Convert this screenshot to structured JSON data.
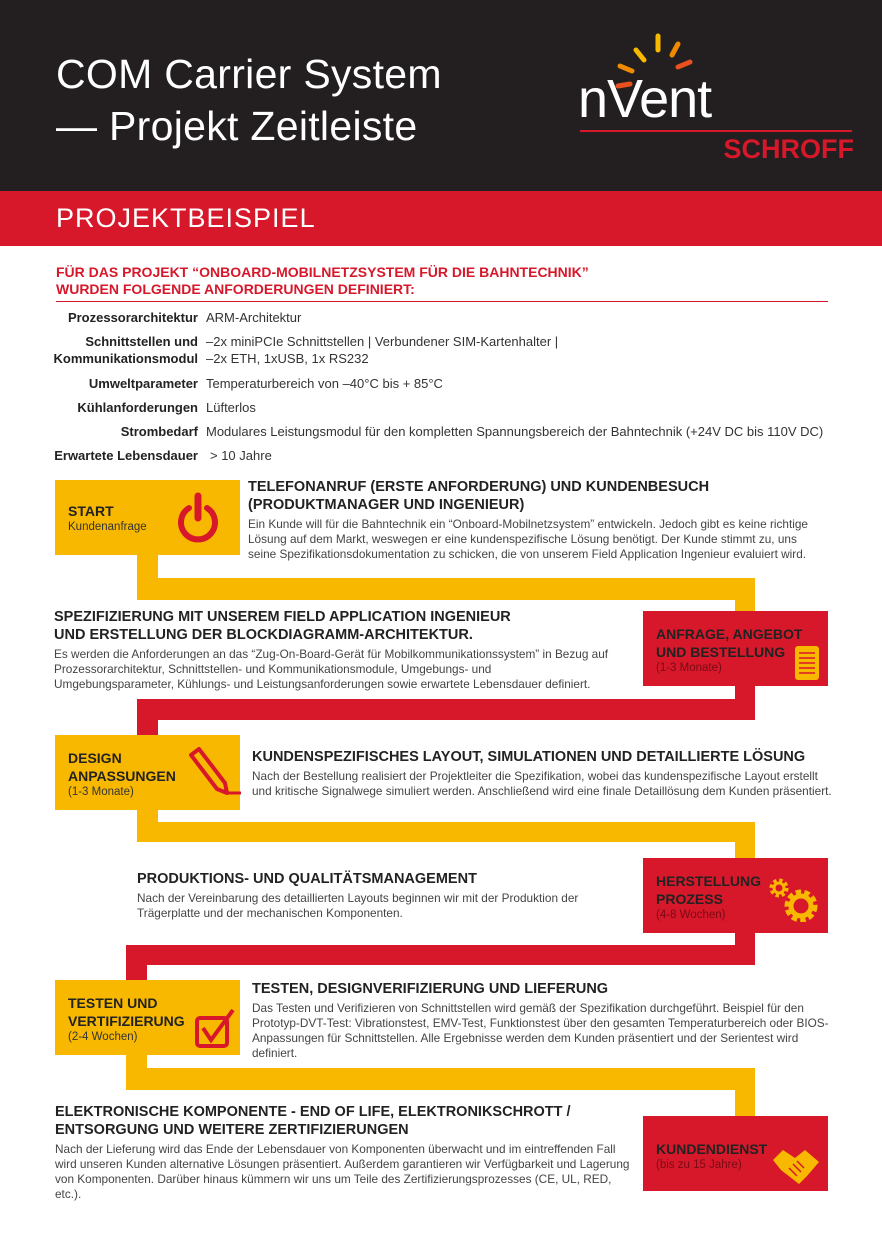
{
  "header": {
    "title_line1": "COM Carrier System",
    "title_line2": "— Projekt Zeitleiste",
    "logo_text": "nVent",
    "logo_sub": "SCHROFF"
  },
  "band": {
    "label": "PROJEKTBEISPIEL"
  },
  "intro": {
    "line1": "FÜR DAS PROJEKT “ONBOARD-MOBILNETZSYSTEM FÜR DIE BAHNTECHNIK”",
    "line2": "WURDEN FOLGENDE ANFORDERUNGEN DEFINIERT:"
  },
  "specs": [
    {
      "key": "Prozessorarchitektur",
      "value": "ARM-Architektur"
    },
    {
      "key": "Schnittstellen und",
      "key2": "Kommunikationsmodul",
      "value": "–2x miniPCIe Schnittstellen | Verbundener SIM-Kartenhalter |",
      "value2": "–2x ETH, 1xUSB, 1x RS232"
    },
    {
      "key": "Umweltparameter",
      "value": "Temperaturbereich von –40°C bis + 85°C"
    },
    {
      "key": "Kühlanforderungen",
      "value": "Lüfterlos"
    },
    {
      "key": "Strombedarf",
      "value": "Modulares Leistungsmodul für den kompletten Spannungsbereich der Bahntechnik (+24V DC bis 110V DC)"
    },
    {
      "key": "Erwartete Lebensdauer",
      "value": "> 10 Jahre"
    }
  ],
  "steps": [
    {
      "box_title": "START",
      "box_sub": "Kundenanfrage",
      "icon": "power-icon",
      "heading": "TELEFONANRUF (ERSTE ANFORDERUNG) UND KUNDENBESUCH (PRODUKTMANAGER UND INGENIEUR)",
      "text": "Ein Kunde will für die Bahntechnik ein “Onboard-Mobilnetzsystem” entwickeln. Jedoch gibt es keine richtige Lösung auf dem Markt, weswegen er eine kundenspezifische Lösung benötigt. Der Kunde stimmt zu, uns seine Spezifikationsdokumentation zu schicken, die von unserem Field Application Ingenieur evaluiert wird."
    },
    {
      "box_title": "ANFRAGE, ANGEBOT UND BESTELLUNG",
      "box_sub": "(1-3 Monate)",
      "icon": "document-icon",
      "heading": "SPEZIFIZIERUNG MIT UNSEREM FIELD APPLICATION INGENIEUR UND ERSTELLUNG DER BLOCKDIAGRAMM-ARCHITEKTUR.",
      "text": "Es werden die Anforderungen an das “Zug-On-Board-Gerät für Mobilkommunikationssystem” in Bezug auf Prozessorarchitektur, Schnittstellen- und Kommunikationsmodule, Umgebungs- und Umgebungsparameter, Kühlungs- und Leistungsanforderungen sowie erwartete Lebensdauer definiert."
    },
    {
      "box_title": "DESIGN ANPASSUNGEN",
      "box_sub": "(1-3 Monate)",
      "icon": "pencil-icon",
      "heading": "KUNDENSPEZIFISCHES LAYOUT, SIMULATIONEN UND DETAILLIERTE LÖSUNG",
      "text": "Nach der Bestellung realisiert der Projektleiter die Spezifikation, wobei das kundenspezifische Layout erstellt und kritische Signalwege simuliert werden. Anschließend wird eine finale Detaillösung dem Kunden präsentiert."
    },
    {
      "box_title": "HERSTELLUNG PROZESS",
      "box_sub": "(4-8 Wochen)",
      "icon": "gears-icon",
      "heading": "PRODUKTIONS- UND QUALITÄTSMANAGEMENT",
      "text": "Nach der Vereinbarung des detaillierten Layouts beginnen wir mit der Produktion der Trägerplatte und der mechanischen Komponenten."
    },
    {
      "box_title": "TESTEN UND VERTIFIZIERUNG",
      "box_sub": "(2-4 Wochen)",
      "icon": "checkbox-icon",
      "heading": "TESTEN, DESIGNVERIFIZIERUNG UND LIEFERUNG",
      "text": "Das Testen und Verifizieren von Schnittstellen wird gemäß der Spezifikation durchgeführt. Beispiel für den Prototyp-DVT-Test: Vibrationstest, EMV-Test, Funktionstest über den gesamten Temperaturbereich oder BIOS-Anpassungen für Schnittstellen. Alle Ergebnisse werden dem Kunden präsentiert und der Serientest wird definiert."
    },
    {
      "box_title": "KUNDENDIENST",
      "box_sub": "(bis zu 15 Jahre)",
      "icon": "handshake-icon",
      "heading": "ELEKTRONISCHE KOMPONENTE - END OF LIFE, ELEKTRONIKSCHROTT / ENTSORGUNG UND WEITERE ZERTIFIZIERUNGEN",
      "text": "Nach der Lieferung wird das Ende der Lebensdauer von Komponenten überwacht und im eintreffenden Fall wird unseren Kunden alternative Lösungen präsentiert. Außerdem garantieren wir Verfügbarkeit und Lagerung von Komponenten. Darüber hinaus kümmern wir uns um Teile des Zertifizierungsprozesses (CE, UL, RED, etc.)."
    }
  ],
  "colors": {
    "dark": "#231f20",
    "red": "#d7182a",
    "yellow": "#f9b800"
  }
}
